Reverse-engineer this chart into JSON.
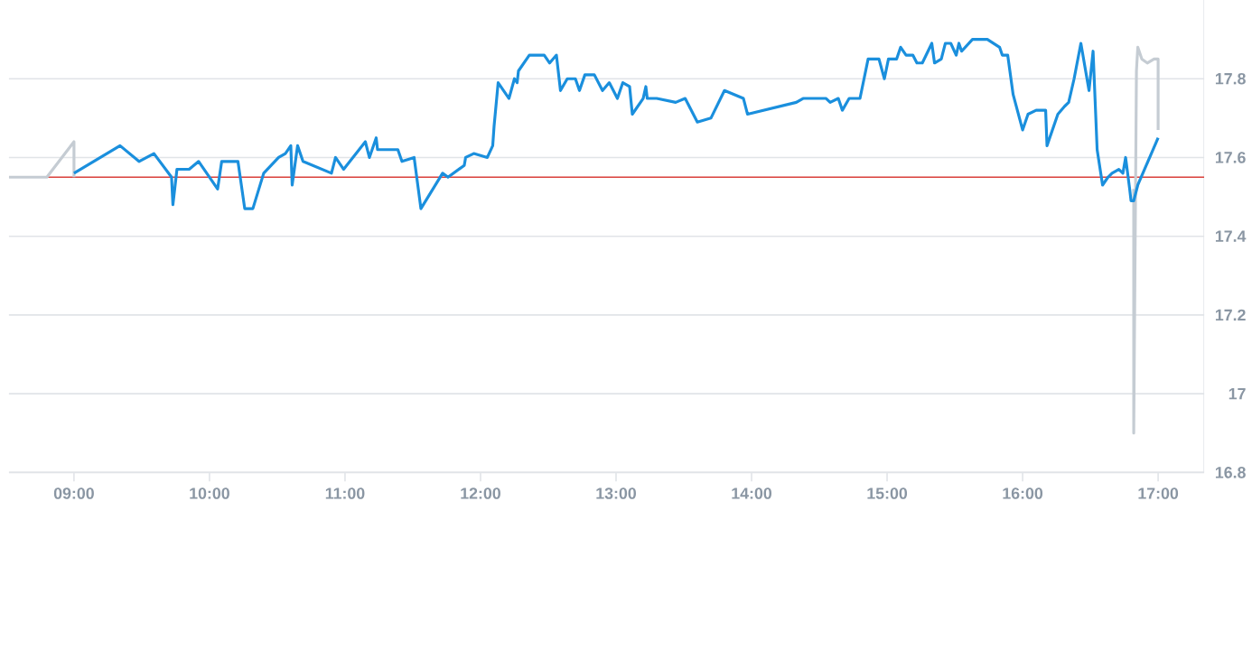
{
  "chart_data": {
    "type": "line",
    "xlim": [
      8.52,
      17.34
    ],
    "ylim": [
      16.8,
      18.0
    ],
    "xticks": [
      {
        "value": 9,
        "label": "09:00"
      },
      {
        "value": 10,
        "label": "10:00"
      },
      {
        "value": 11,
        "label": "11:00"
      },
      {
        "value": 12,
        "label": "12:00"
      },
      {
        "value": 13,
        "label": "13:00"
      },
      {
        "value": 14,
        "label": "14:00"
      },
      {
        "value": 15,
        "label": "15:00"
      },
      {
        "value": 16,
        "label": "16:00"
      },
      {
        "value": 17,
        "label": "17:00"
      }
    ],
    "yticks": [
      16.8,
      17,
      17.2,
      17.4,
      17.6,
      17.8
    ],
    "grid": "y",
    "line_style": "solid",
    "marker": "none",
    "ref_lines": [
      {
        "axis": "y",
        "value": 17.55,
        "color": "#d9403a"
      }
    ],
    "series": [
      {
        "color": "#c5ccd3",
        "x": [
          8.52,
          8.8,
          9.0,
          9.0
        ],
        "values": [
          17.55,
          17.55,
          17.64,
          17.55
        ]
      },
      {
        "color": "#c5ccd3",
        "x": [
          16.82,
          16.82,
          16.84,
          16.85,
          16.88,
          16.92,
          16.97,
          17.0,
          17.0
        ],
        "values": [
          17.52,
          16.9,
          17.82,
          17.88,
          17.85,
          17.84,
          17.85,
          17.85,
          17.67
        ]
      },
      {
        "color": "#1a8fdd",
        "x": [
          9.0,
          9.34,
          9.48,
          9.59,
          9.72,
          9.73,
          9.76,
          9.85,
          9.92,
          10.06,
          10.09,
          10.21,
          10.26,
          10.32,
          10.4,
          10.51,
          10.56,
          10.6,
          10.61,
          10.65,
          10.69,
          10.9,
          10.93,
          10.99,
          11.15,
          11.18,
          11.23,
          11.24,
          11.39,
          11.42,
          11.51,
          11.56,
          11.72,
          11.76,
          11.88,
          11.89,
          11.95,
          12.05,
          12.09,
          12.1,
          12.13,
          12.21,
          12.25,
          12.27,
          12.28,
          12.36,
          12.47,
          12.51,
          12.56,
          12.59,
          12.64,
          12.7,
          12.73,
          12.77,
          12.84,
          12.9,
          12.95,
          13.01,
          13.05,
          13.1,
          13.12,
          13.2,
          13.22,
          13.23,
          13.3,
          13.44,
          13.51,
          13.6,
          13.7,
          13.8,
          13.94,
          13.97,
          14.33,
          14.38,
          14.55,
          14.58,
          14.64,
          14.67,
          14.72,
          14.8,
          14.86,
          14.94,
          14.98,
          15.01,
          15.07,
          15.1,
          15.14,
          15.19,
          15.22,
          15.26,
          15.33,
          15.35,
          15.4,
          15.43,
          15.47,
          15.51,
          15.53,
          15.55,
          15.63,
          15.74,
          15.83,
          15.85,
          15.89,
          15.93,
          16.0,
          16.04,
          16.1,
          16.17,
          16.18,
          16.26,
          16.31,
          16.34,
          16.38,
          16.43,
          16.49,
          16.52,
          16.55,
          16.59,
          16.63,
          16.66,
          16.71,
          16.74,
          16.76,
          16.79,
          16.8,
          16.82,
          16.85,
          17.0
        ],
        "values": [
          17.56,
          17.63,
          17.59,
          17.61,
          17.55,
          17.48,
          17.57,
          17.57,
          17.59,
          17.52,
          17.59,
          17.59,
          17.47,
          17.47,
          17.56,
          17.6,
          17.61,
          17.63,
          17.53,
          17.63,
          17.59,
          17.56,
          17.6,
          17.57,
          17.64,
          17.6,
          17.65,
          17.62,
          17.62,
          17.59,
          17.6,
          17.47,
          17.56,
          17.55,
          17.58,
          17.6,
          17.61,
          17.6,
          17.63,
          17.68,
          17.79,
          17.75,
          17.8,
          17.79,
          17.82,
          17.86,
          17.86,
          17.84,
          17.86,
          17.77,
          17.8,
          17.8,
          17.77,
          17.81,
          17.81,
          17.77,
          17.79,
          17.75,
          17.79,
          17.78,
          17.71,
          17.75,
          17.78,
          17.75,
          17.75,
          17.74,
          17.75,
          17.69,
          17.7,
          17.77,
          17.75,
          17.71,
          17.74,
          17.75,
          17.75,
          17.74,
          17.75,
          17.72,
          17.75,
          17.75,
          17.85,
          17.85,
          17.8,
          17.85,
          17.85,
          17.88,
          17.86,
          17.86,
          17.84,
          17.84,
          17.89,
          17.84,
          17.85,
          17.89,
          17.89,
          17.86,
          17.89,
          17.87,
          17.9,
          17.9,
          17.88,
          17.86,
          17.86,
          17.76,
          17.67,
          17.71,
          17.72,
          17.72,
          17.63,
          17.71,
          17.73,
          17.74,
          17.8,
          17.89,
          17.77,
          17.87,
          17.62,
          17.53,
          17.55,
          17.56,
          17.57,
          17.56,
          17.6,
          17.52,
          17.49,
          17.49,
          17.53,
          17.65
        ]
      }
    ]
  }
}
